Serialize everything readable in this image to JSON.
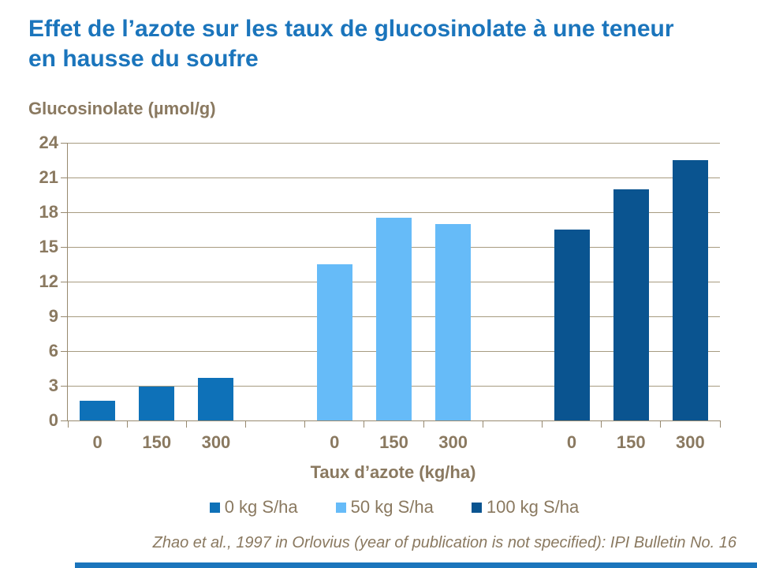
{
  "title": {
    "line1": "Effet de l’azote sur les taux de glucosinolate à une teneur",
    "line2": "en hausse du soufre"
  },
  "source": "Zhao et al., 1997 in Orlovius (year of publication is not specified): IPI Bulletin No. 16",
  "colors": {
    "title_blue": "#1B75BC",
    "axis_text_brown": "#8A7960",
    "gridline_tan": "#A79B80",
    "axis_line": "#97896F",
    "footer_bar_blue": "#1B75BC"
  },
  "chart_data": {
    "type": "bar",
    "title": "Effet de l’azote sur les taux de glucosinolate à une teneur en hausse du soufre",
    "ylabel": "Glucosinolate (µmol/g)",
    "xlabel": "Taux d’azote (kg/ha)",
    "ylim": [
      0,
      24
    ],
    "y_ticks": [
      0,
      3,
      6,
      9,
      12,
      15,
      18,
      21,
      24
    ],
    "grid": true,
    "legend_position": "bottom",
    "layout": "each series forms its own block of 3 categories with one blank slot between blocks",
    "categories": [
      "0",
      "150",
      "300"
    ],
    "series": [
      {
        "name": "0 kg S/ha",
        "color": "#0E71B8",
        "values": [
          1.7,
          2.9,
          3.7
        ]
      },
      {
        "name": "50 kg S/ha",
        "color": "#66BBF8",
        "values": [
          13.5,
          17.5,
          17.0
        ]
      },
      {
        "name": "100 kg S/ha",
        "color": "#0A5490",
        "values": [
          16.5,
          20.0,
          22.5
        ]
      }
    ]
  }
}
